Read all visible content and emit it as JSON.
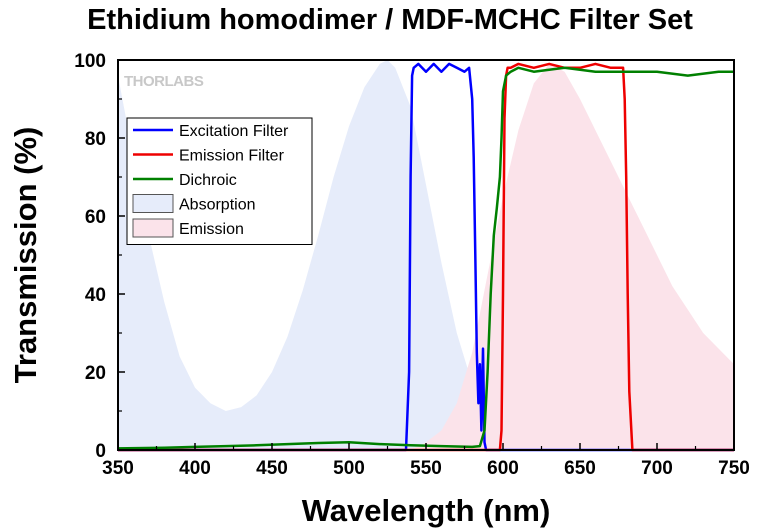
{
  "chart_data": {
    "type": "line",
    "title": "Ethidium homodimer / MDF-MCHC Filter Set",
    "xlabel": "Wavelength (nm)",
    "ylabel": "Transmission (%)",
    "xlim": [
      350,
      750
    ],
    "ylim": [
      0,
      100
    ],
    "xticks": [
      350,
      400,
      450,
      500,
      550,
      600,
      650,
      700,
      750
    ],
    "yticks": [
      0,
      20,
      40,
      60,
      80,
      100
    ],
    "grid": false,
    "watermark": "THORLABS",
    "legend_position": "top-left",
    "series": [
      {
        "name": "Excitation Filter",
        "kind": "line",
        "color": "#0000ff",
        "x": [
          350,
          537,
          539,
          540,
          541,
          542,
          545,
          550,
          555,
          560,
          565,
          570,
          575,
          578,
          580,
          581,
          582,
          583,
          584,
          585,
          586,
          587,
          588,
          589,
          750
        ],
        "y": [
          0,
          0,
          20,
          70,
          96,
          98,
          99,
          97,
          99,
          97,
          99,
          98,
          97,
          98,
          90,
          75,
          50,
          25,
          12,
          22,
          5,
          26,
          2,
          0,
          0
        ]
      },
      {
        "name": "Emission Filter",
        "kind": "line",
        "color": "#ee0000",
        "x": [
          350,
          598,
          599,
          600,
          601,
          602,
          603,
          605,
          610,
          620,
          630,
          640,
          650,
          660,
          670,
          678,
          679,
          680,
          681,
          682,
          684,
          750
        ],
        "y": [
          0,
          0,
          5,
          40,
          85,
          96,
          98,
          98,
          99,
          98,
          99,
          98,
          98,
          99,
          98,
          98,
          90,
          70,
          40,
          15,
          0,
          0
        ]
      },
      {
        "name": "Dichroic",
        "kind": "line",
        "color": "#008000",
        "x": [
          350,
          380,
          400,
          420,
          440,
          460,
          480,
          500,
          520,
          540,
          560,
          580,
          585,
          588,
          590,
          592,
          594,
          596,
          598,
          599,
          600,
          602,
          605,
          610,
          620,
          640,
          660,
          680,
          700,
          720,
          740,
          750
        ],
        "y": [
          0.4,
          0.6,
          0.8,
          1,
          1.2,
          1.5,
          1.8,
          2,
          1.5,
          1.2,
          1,
          0.8,
          1,
          5,
          20,
          40,
          55,
          62,
          70,
          80,
          92,
          96,
          97,
          98,
          97,
          98,
          97,
          97,
          97,
          96,
          97,
          97
        ]
      },
      {
        "name": "Absorption",
        "kind": "area",
        "color": "#e6ecfa",
        "x": [
          350,
          360,
          370,
          380,
          390,
          400,
          410,
          420,
          430,
          440,
          450,
          460,
          470,
          480,
          490,
          500,
          510,
          520,
          525,
          530,
          540,
          550,
          560,
          570,
          580,
          590,
          600,
          610,
          620
        ],
        "y": [
          96,
          75,
          55,
          38,
          24,
          16,
          12,
          10,
          11,
          14,
          20,
          29,
          41,
          55,
          70,
          83,
          93,
          99,
          100,
          98,
          88,
          68,
          48,
          30,
          17,
          9,
          4,
          1,
          0
        ]
      },
      {
        "name": "Emission",
        "kind": "area",
        "color": "#fbe3ea",
        "x": [
          540,
          550,
          560,
          570,
          580,
          590,
          600,
          610,
          620,
          630,
          640,
          650,
          660,
          670,
          680,
          690,
          700,
          710,
          720,
          730,
          740,
          750
        ],
        "y": [
          0,
          2,
          5,
          12,
          25,
          45,
          65,
          82,
          94,
          99,
          97,
          90,
          82,
          74,
          66,
          58,
          50,
          42,
          36,
          30,
          26,
          22
        ]
      }
    ]
  }
}
